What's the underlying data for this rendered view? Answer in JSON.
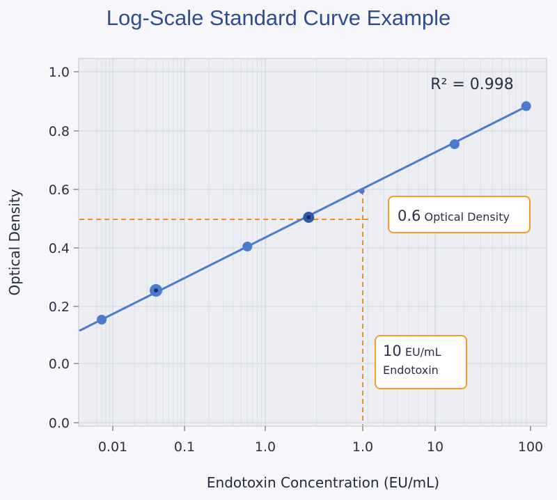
{
  "chart_data": {
    "type": "line",
    "title": "Log-Scale Standard Curve Example",
    "xlabel": "Endotoxin Concentration (EU/mL)",
    "ylabel": "Optical Density",
    "x_scale": "log",
    "x_tick_labels": [
      "0.01",
      "0.1",
      "1.0",
      "1.0",
      "10",
      "100"
    ],
    "y_tick_labels": [
      "1.0",
      "0.8",
      "0.6",
      "0.4",
      "0.2",
      "0.0",
      "0.0"
    ],
    "grid": true,
    "points": [
      {
        "x": 0.007,
        "y": 0.15
      },
      {
        "x": 0.04,
        "y": 0.25
      },
      {
        "x": 0.6,
        "y": 0.4
      },
      {
        "x": 1.8,
        "y": 0.5
      },
      {
        "x": 3.7,
        "y": 0.59
      },
      {
        "x": 16,
        "y": 0.75
      },
      {
        "x": 90,
        "y": 0.88
      }
    ],
    "annotations": {
      "r_squared": "R² = 0.998",
      "od_callout_value": "0.6",
      "od_callout_text": "Optical Density",
      "conc_callout_value": "10",
      "conc_callout_unit": "EU/mL",
      "conc_callout_text": "Endotoxin"
    },
    "colors": {
      "line": "#4a7bcc",
      "guide": "#f28c1e",
      "title": "#2e4d8e"
    }
  }
}
